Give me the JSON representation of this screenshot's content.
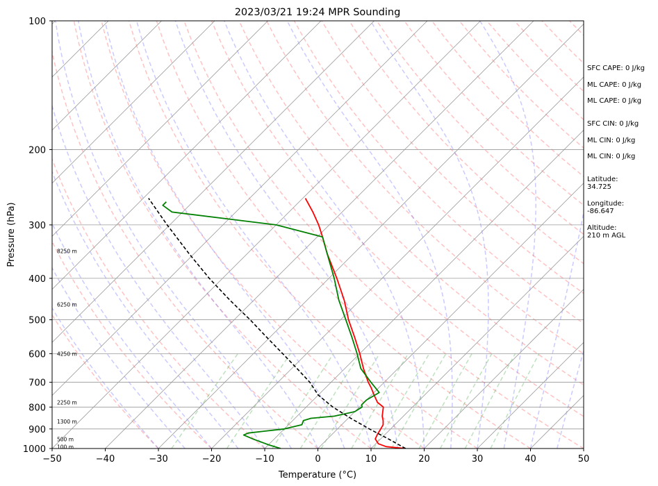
{
  "chart_data": {
    "type": "line",
    "title": "2023/03/21 19:24 MPR Sounding",
    "xlabel": "Temperature (°C)",
    "ylabel": "Pressure (hPa)",
    "xlim": [
      -50,
      50
    ],
    "ylim": [
      1000,
      100
    ],
    "y_scale": "log",
    "x_ticks": [
      -50,
      -40,
      -30,
      -20,
      -10,
      0,
      10,
      20,
      30,
      40,
      50
    ],
    "y_ticks": [
      1000,
      900,
      800,
      700,
      600,
      500,
      400,
      300,
      200,
      100
    ],
    "grid": true,
    "series": [
      {
        "role": "temperature",
        "color": "#ff0000",
        "pressure": [
          1000,
          990,
          975,
          950,
          925,
          910,
          880,
          860,
          840,
          800,
          780,
          750,
          720,
          700,
          650,
          600,
          550,
          500,
          450,
          400,
          350,
          320,
          300,
          280,
          260
        ],
        "values": [
          16.5,
          12.5,
          10.5,
          9.0,
          8.5,
          8.3,
          7.8,
          7.0,
          6.0,
          4.5,
          2.5,
          0.5,
          -1.5,
          -3.0,
          -6.5,
          -10.0,
          -14.0,
          -18.5,
          -23.0,
          -28.5,
          -35.0,
          -39.0,
          -42.0,
          -45.5,
          -49.5
        ]
      },
      {
        "role": "dewpoint",
        "color": "#008000",
        "pressure": [
          1000,
          980,
          950,
          930,
          920,
          900,
          880,
          860,
          850,
          840,
          820,
          800,
          790,
          770,
          740,
          700,
          650,
          600,
          550,
          500,
          450,
          400,
          350,
          320,
          300,
          280,
          270,
          265
        ],
        "values": [
          -7.0,
          -10.0,
          -14.0,
          -16.5,
          -16.0,
          -10.0,
          -7.5,
          -8.0,
          -7.0,
          -3.0,
          0.0,
          0.5,
          0.0,
          0.0,
          1.0,
          -2.5,
          -7.0,
          -10.5,
          -14.5,
          -19.0,
          -24.0,
          -29.0,
          -35.0,
          -39.0,
          -50.0,
          -72.0,
          -75.0,
          -75.0
        ]
      },
      {
        "role": "parcel",
        "color": "#000000",
        "dashed": true,
        "pressure": [
          1000,
          950,
          900,
          850,
          800,
          750,
          700,
          650,
          600,
          550,
          500,
          450,
          400,
          350,
          300,
          260
        ],
        "values": [
          16.5,
          11.5,
          6.0,
          0.5,
          -5.0,
          -10.0,
          -14.0,
          -19.0,
          -24.5,
          -30.5,
          -37.0,
          -44.5,
          -52.5,
          -61.0,
          -70.5,
          -79.0
        ]
      }
    ],
    "height_labels": [
      {
        "label": "100 m",
        "pressure": 990
      },
      {
        "label": "500 m",
        "pressure": 950
      },
      {
        "label": "1300 m",
        "pressure": 865
      },
      {
        "label": "2250 m",
        "pressure": 780
      },
      {
        "label": "4250 m",
        "pressure": 600
      },
      {
        "label": "6250 m",
        "pressure": 460
      },
      {
        "label": "8250 m",
        "pressure": 345
      }
    ],
    "colors": {
      "dry_adiabat": "#ff6666",
      "moist_adiabat": "#6666ff",
      "mixing_ratio": "#44aa44",
      "isotherm": "#999999"
    }
  },
  "side_info": {
    "sfc_cape": "SFC CAPE: 0 J/kg",
    "ml_cape_1": "ML CAPE: 0 J/kg",
    "ml_cape_2": "ML CAPE: 0 J/kg",
    "sfc_cin": "SFC CIN: 0 J/kg",
    "ml_cin_1": "ML CIN: 0 J/kg",
    "ml_cin_2": "ML CIN: 0 J/kg",
    "latitude": "Latitude:\n34.725",
    "longitude": "Longitude:\n-86.647",
    "altitude": "Altitude:\n210 m AGL"
  }
}
